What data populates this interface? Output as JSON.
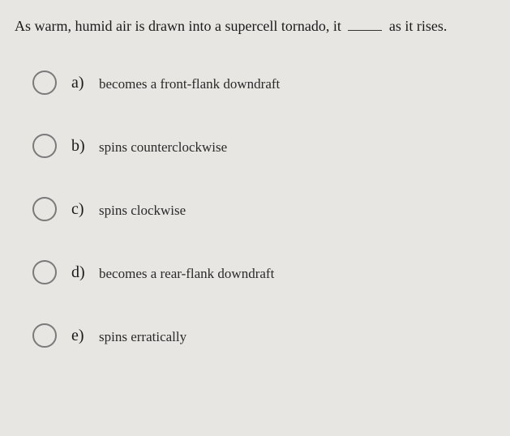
{
  "question": {
    "prefix": "As warm, humid air is drawn into a supercell tornado, it",
    "suffix": "as it rises."
  },
  "options": [
    {
      "letter": "a)",
      "text": "becomes a front-flank downdraft"
    },
    {
      "letter": "b)",
      "text": "spins counterclockwise"
    },
    {
      "letter": "c)",
      "text": "spins clockwise"
    },
    {
      "letter": "d)",
      "text": "becomes a rear-flank downdraft"
    },
    {
      "letter": "e)",
      "text": "spins erratically"
    }
  ],
  "colors": {
    "background": "#e8e6e3",
    "text": "#2a2a2a",
    "radio_border": "#7a7a7a"
  },
  "styling": {
    "question_fontsize": 18,
    "letter_fontsize": 20,
    "option_fontsize": 17,
    "radio_diameter": 30,
    "option_spacing": 48
  }
}
